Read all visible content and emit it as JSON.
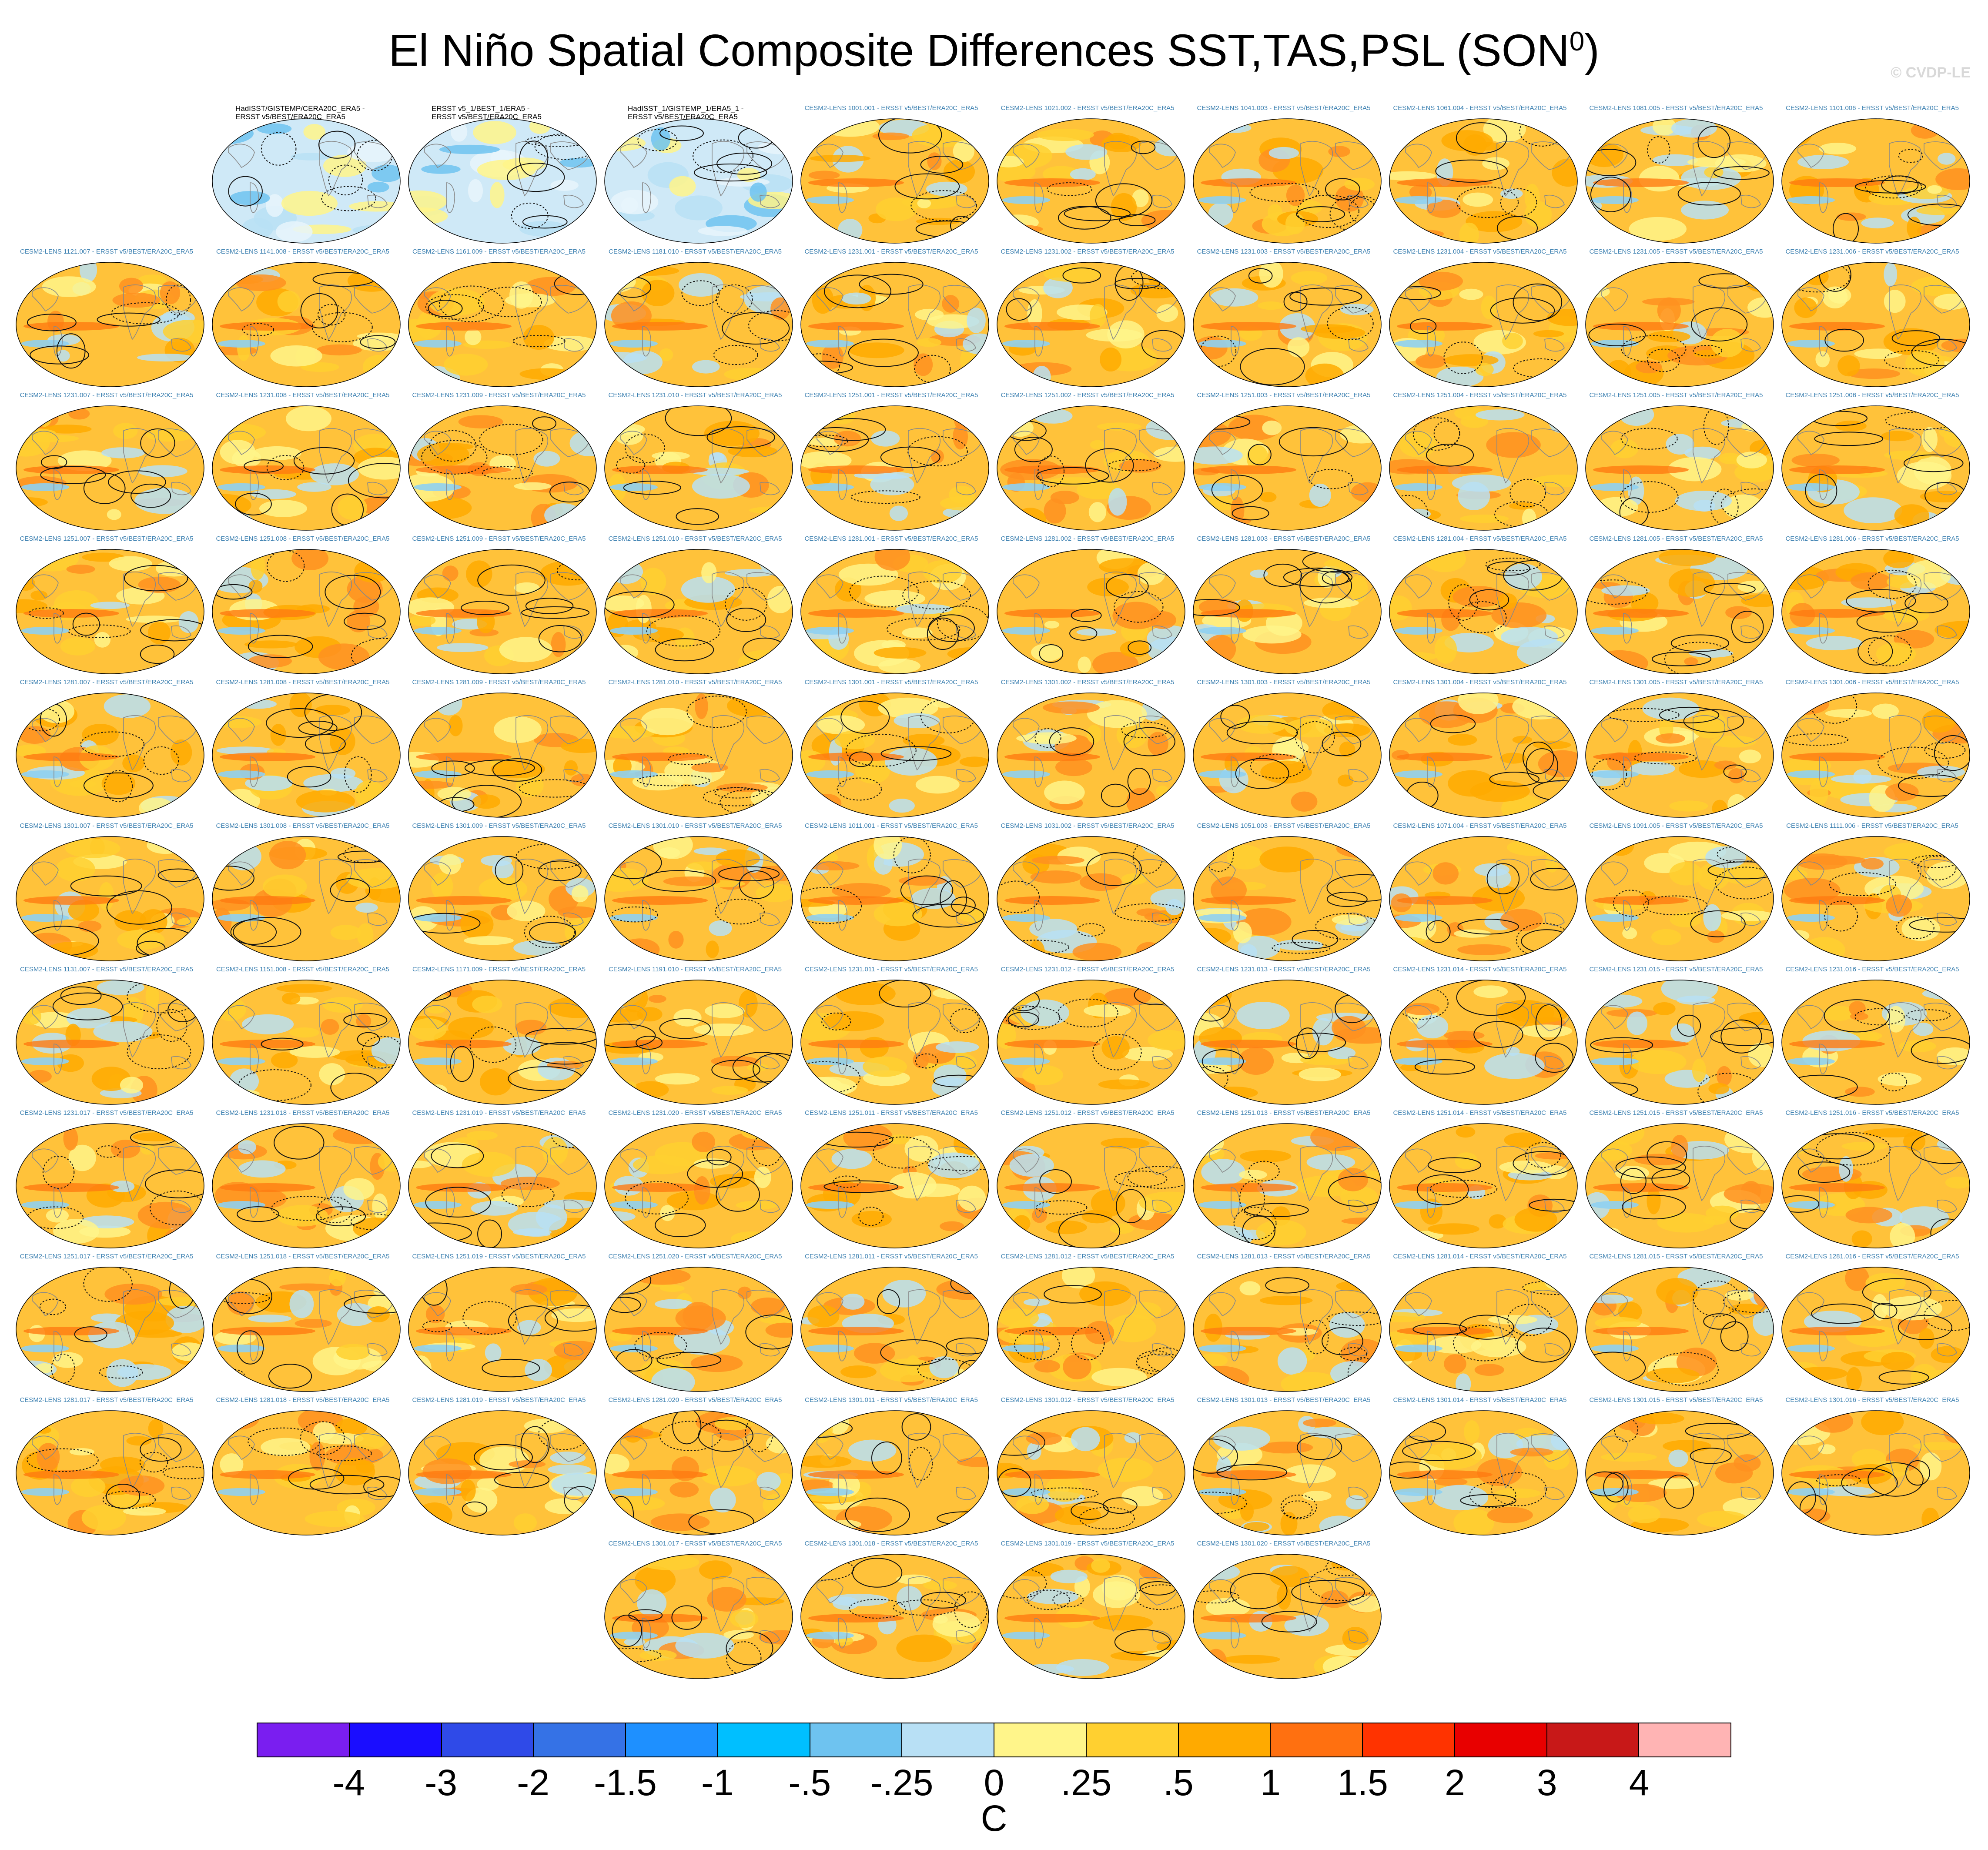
{
  "title": {
    "main": "El Niño Spatial Composite Differences SST,TAS,PSL (SON",
    "superscript": "0",
    "close": ")"
  },
  "watermark": "© CVDP-LE",
  "panels": [
    {
      "label": "HadISST/GISTEMP/CERA20C_ERA5 -\nERSST v5/BEST/ERA20C_ERA5",
      "type": "obs"
    },
    {
      "label": "ERSST v5_1/BEST_1/ERA5 -\nERSST v5/BEST/ERA20C_ERA5",
      "type": "obs"
    },
    {
      "label": "HadISST_1/GISTEMP_1/ERA5_1 -\nERSST v5/BEST/ERA20C_ERA5",
      "type": "obs"
    },
    {
      "label": "CESM2-LENS 1001.001 - ERSST v5/BEST/ERA20C_ERA5",
      "type": "model"
    },
    {
      "label": "CESM2-LENS 1021.002 - ERSST v5/BEST/ERA20C_ERA5",
      "type": "model"
    },
    {
      "label": "CESM2-LENS 1041.003 - ERSST v5/BEST/ERA20C_ERA5",
      "type": "model"
    },
    {
      "label": "CESM2-LENS 1061.004 - ERSST v5/BEST/ERA20C_ERA5",
      "type": "model"
    },
    {
      "label": "CESM2-LENS 1081.005 - ERSST v5/BEST/ERA20C_ERA5",
      "type": "model"
    },
    {
      "label": "CESM2-LENS 1101.006 - ERSST v5/BEST/ERA20C_ERA5",
      "type": "model"
    },
    {
      "label": "CESM2-LENS 1121.007 - ERSST v5/BEST/ERA20C_ERA5",
      "type": "model"
    },
    {
      "label": "CESM2-LENS 1141.008 - ERSST v5/BEST/ERA20C_ERA5",
      "type": "model"
    },
    {
      "label": "CESM2-LENS 1161.009 - ERSST v5/BEST/ERA20C_ERA5",
      "type": "model"
    },
    {
      "label": "CESM2-LENS 1181.010 - ERSST v5/BEST/ERA20C_ERA5",
      "type": "model"
    },
    {
      "label": "CESM2-LENS 1231.001 - ERSST v5/BEST/ERA20C_ERA5",
      "type": "model"
    },
    {
      "label": "CESM2-LENS 1231.002 - ERSST v5/BEST/ERA20C_ERA5",
      "type": "model"
    },
    {
      "label": "CESM2-LENS 1231.003 - ERSST v5/BEST/ERA20C_ERA5",
      "type": "model"
    },
    {
      "label": "CESM2-LENS 1231.004 - ERSST v5/BEST/ERA20C_ERA5",
      "type": "model"
    },
    {
      "label": "CESM2-LENS 1231.005 - ERSST v5/BEST/ERA20C_ERA5",
      "type": "model"
    },
    {
      "label": "CESM2-LENS 1231.006 - ERSST v5/BEST/ERA20C_ERA5",
      "type": "model"
    },
    {
      "label": "CESM2-LENS 1231.007 - ERSST v5/BEST/ERA20C_ERA5",
      "type": "model"
    },
    {
      "label": "CESM2-LENS 1231.008 - ERSST v5/BEST/ERA20C_ERA5",
      "type": "model"
    },
    {
      "label": "CESM2-LENS 1231.009 - ERSST v5/BEST/ERA20C_ERA5",
      "type": "model"
    },
    {
      "label": "CESM2-LENS 1231.010 - ERSST v5/BEST/ERA20C_ERA5",
      "type": "model"
    },
    {
      "label": "CESM2-LENS 1251.001 - ERSST v5/BEST/ERA20C_ERA5",
      "type": "model"
    },
    {
      "label": "CESM2-LENS 1251.002 - ERSST v5/BEST/ERA20C_ERA5",
      "type": "model"
    },
    {
      "label": "CESM2-LENS 1251.003 - ERSST v5/BEST/ERA20C_ERA5",
      "type": "model"
    },
    {
      "label": "CESM2-LENS 1251.004 - ERSST v5/BEST/ERA20C_ERA5",
      "type": "model"
    },
    {
      "label": "CESM2-LENS 1251.005 - ERSST v5/BEST/ERA20C_ERA5",
      "type": "model"
    },
    {
      "label": "CESM2-LENS 1251.006 - ERSST v5/BEST/ERA20C_ERA5",
      "type": "model"
    },
    {
      "label": "CESM2-LENS 1251.007 - ERSST v5/BEST/ERA20C_ERA5",
      "type": "model"
    },
    {
      "label": "CESM2-LENS 1251.008 - ERSST v5/BEST/ERA20C_ERA5",
      "type": "model"
    },
    {
      "label": "CESM2-LENS 1251.009 - ERSST v5/BEST/ERA20C_ERA5",
      "type": "model"
    },
    {
      "label": "CESM2-LENS 1251.010 - ERSST v5/BEST/ERA20C_ERA5",
      "type": "model"
    },
    {
      "label": "CESM2-LENS 1281.001 - ERSST v5/BEST/ERA20C_ERA5",
      "type": "model"
    },
    {
      "label": "CESM2-LENS 1281.002 - ERSST v5/BEST/ERA20C_ERA5",
      "type": "model"
    },
    {
      "label": "CESM2-LENS 1281.003 - ERSST v5/BEST/ERA20C_ERA5",
      "type": "model"
    },
    {
      "label": "CESM2-LENS 1281.004 - ERSST v5/BEST/ERA20C_ERA5",
      "type": "model"
    },
    {
      "label": "CESM2-LENS 1281.005 - ERSST v5/BEST/ERA20C_ERA5",
      "type": "model"
    },
    {
      "label": "CESM2-LENS 1281.006 - ERSST v5/BEST/ERA20C_ERA5",
      "type": "model"
    },
    {
      "label": "CESM2-LENS 1281.007 - ERSST v5/BEST/ERA20C_ERA5",
      "type": "model"
    },
    {
      "label": "CESM2-LENS 1281.008 - ERSST v5/BEST/ERA20C_ERA5",
      "type": "model"
    },
    {
      "label": "CESM2-LENS 1281.009 - ERSST v5/BEST/ERA20C_ERA5",
      "type": "model"
    },
    {
      "label": "CESM2-LENS 1281.010 - ERSST v5/BEST/ERA20C_ERA5",
      "type": "model"
    },
    {
      "label": "CESM2-LENS 1301.001 - ERSST v5/BEST/ERA20C_ERA5",
      "type": "model"
    },
    {
      "label": "CESM2-LENS 1301.002 - ERSST v5/BEST/ERA20C_ERA5",
      "type": "model"
    },
    {
      "label": "CESM2-LENS 1301.003 - ERSST v5/BEST/ERA20C_ERA5",
      "type": "model"
    },
    {
      "label": "CESM2-LENS 1301.004 - ERSST v5/BEST/ERA20C_ERA5",
      "type": "model"
    },
    {
      "label": "CESM2-LENS 1301.005 - ERSST v5/BEST/ERA20C_ERA5",
      "type": "model"
    },
    {
      "label": "CESM2-LENS 1301.006 - ERSST v5/BEST/ERA20C_ERA5",
      "type": "model"
    },
    {
      "label": "CESM2-LENS 1301.007 - ERSST v5/BEST/ERA20C_ERA5",
      "type": "model"
    },
    {
      "label": "CESM2-LENS 1301.008 - ERSST v5/BEST/ERA20C_ERA5",
      "type": "model"
    },
    {
      "label": "CESM2-LENS 1301.009 - ERSST v5/BEST/ERA20C_ERA5",
      "type": "model"
    },
    {
      "label": "CESM2-LENS 1301.010 - ERSST v5/BEST/ERA20C_ERA5",
      "type": "model"
    },
    {
      "label": "CESM2-LENS 1011.001 - ERSST v5/BEST/ERA20C_ERA5",
      "type": "model"
    },
    {
      "label": "CESM2-LENS 1031.002 - ERSST v5/BEST/ERA20C_ERA5",
      "type": "model"
    },
    {
      "label": "CESM2-LENS 1051.003 - ERSST v5/BEST/ERA20C_ERA5",
      "type": "model"
    },
    {
      "label": "CESM2-LENS 1071.004 - ERSST v5/BEST/ERA20C_ERA5",
      "type": "model"
    },
    {
      "label": "CESM2-LENS 1091.005 - ERSST v5/BEST/ERA20C_ERA5",
      "type": "model"
    },
    {
      "label": "CESM2-LENS 1111.006 - ERSST v5/BEST/ERA20C_ERA5",
      "type": "model"
    },
    {
      "label": "CESM2-LENS 1131.007 - ERSST v5/BEST/ERA20C_ERA5",
      "type": "model"
    },
    {
      "label": "CESM2-LENS 1151.008 - ERSST v5/BEST/ERA20C_ERA5",
      "type": "model"
    },
    {
      "label": "CESM2-LENS 1171.009 - ERSST v5/BEST/ERA20C_ERA5",
      "type": "model"
    },
    {
      "label": "CESM2-LENS 1191.010 - ERSST v5/BEST/ERA20C_ERA5",
      "type": "model"
    },
    {
      "label": "CESM2-LENS 1231.011 - ERSST v5/BEST/ERA20C_ERA5",
      "type": "model"
    },
    {
      "label": "CESM2-LENS 1231.012 - ERSST v5/BEST/ERA20C_ERA5",
      "type": "model"
    },
    {
      "label": "CESM2-LENS 1231.013 - ERSST v5/BEST/ERA20C_ERA5",
      "type": "model"
    },
    {
      "label": "CESM2-LENS 1231.014 - ERSST v5/BEST/ERA20C_ERA5",
      "type": "model"
    },
    {
      "label": "CESM2-LENS 1231.015 - ERSST v5/BEST/ERA20C_ERA5",
      "type": "model"
    },
    {
      "label": "CESM2-LENS 1231.016 - ERSST v5/BEST/ERA20C_ERA5",
      "type": "model"
    },
    {
      "label": "CESM2-LENS 1231.017 - ERSST v5/BEST/ERA20C_ERA5",
      "type": "model"
    },
    {
      "label": "CESM2-LENS 1231.018 - ERSST v5/BEST/ERA20C_ERA5",
      "type": "model"
    },
    {
      "label": "CESM2-LENS 1231.019 - ERSST v5/BEST/ERA20C_ERA5",
      "type": "model"
    },
    {
      "label": "CESM2-LENS 1231.020 - ERSST v5/BEST/ERA20C_ERA5",
      "type": "model"
    },
    {
      "label": "CESM2-LENS 1251.011 - ERSST v5/BEST/ERA20C_ERA5",
      "type": "model"
    },
    {
      "label": "CESM2-LENS 1251.012 - ERSST v5/BEST/ERA20C_ERA5",
      "type": "model"
    },
    {
      "label": "CESM2-LENS 1251.013 - ERSST v5/BEST/ERA20C_ERA5",
      "type": "model"
    },
    {
      "label": "CESM2-LENS 1251.014 - ERSST v5/BEST/ERA20C_ERA5",
      "type": "model"
    },
    {
      "label": "CESM2-LENS 1251.015 - ERSST v5/BEST/ERA20C_ERA5",
      "type": "model"
    },
    {
      "label": "CESM2-LENS 1251.016 - ERSST v5/BEST/ERA20C_ERA5",
      "type": "model"
    },
    {
      "label": "CESM2-LENS 1251.017 - ERSST v5/BEST/ERA20C_ERA5",
      "type": "model"
    },
    {
      "label": "CESM2-LENS 1251.018 - ERSST v5/BEST/ERA20C_ERA5",
      "type": "model"
    },
    {
      "label": "CESM2-LENS 1251.019 - ERSST v5/BEST/ERA20C_ERA5",
      "type": "model"
    },
    {
      "label": "CESM2-LENS 1251.020 - ERSST v5/BEST/ERA20C_ERA5",
      "type": "model"
    },
    {
      "label": "CESM2-LENS 1281.011 - ERSST v5/BEST/ERA20C_ERA5",
      "type": "model"
    },
    {
      "label": "CESM2-LENS 1281.012 - ERSST v5/BEST/ERA20C_ERA5",
      "type": "model"
    },
    {
      "label": "CESM2-LENS 1281.013 - ERSST v5/BEST/ERA20C_ERA5",
      "type": "model"
    },
    {
      "label": "CESM2-LENS 1281.014 - ERSST v5/BEST/ERA20C_ERA5",
      "type": "model"
    },
    {
      "label": "CESM2-LENS 1281.015 - ERSST v5/BEST/ERA20C_ERA5",
      "type": "model"
    },
    {
      "label": "CESM2-LENS 1281.016 - ERSST v5/BEST/ERA20C_ERA5",
      "type": "model"
    },
    {
      "label": "CESM2-LENS 1281.017 - ERSST v5/BEST/ERA20C_ERA5",
      "type": "model"
    },
    {
      "label": "CESM2-LENS 1281.018 - ERSST v5/BEST/ERA20C_ERA5",
      "type": "model"
    },
    {
      "label": "CESM2-LENS 1281.019 - ERSST v5/BEST/ERA20C_ERA5",
      "type": "model"
    },
    {
      "label": "CESM2-LENS 1281.020 - ERSST v5/BEST/ERA20C_ERA5",
      "type": "model"
    },
    {
      "label": "CESM2-LENS 1301.011 - ERSST v5/BEST/ERA20C_ERA5",
      "type": "model"
    },
    {
      "label": "CESM2-LENS 1301.012 - ERSST v5/BEST/ERA20C_ERA5",
      "type": "model"
    },
    {
      "label": "CESM2-LENS 1301.013 - ERSST v5/BEST/ERA20C_ERA5",
      "type": "model"
    },
    {
      "label": "CESM2-LENS 1301.014 - ERSST v5/BEST/ERA20C_ERA5",
      "type": "model"
    },
    {
      "label": "CESM2-LENS 1301.015 - ERSST v5/BEST/ERA20C_ERA5",
      "type": "model"
    },
    {
      "label": "CESM2-LENS 1301.016 - ERSST v5/BEST/ERA20C_ERA5",
      "type": "model"
    },
    {
      "label": "CESM2-LENS 1301.017 - ERSST v5/BEST/ERA20C_ERA5",
      "type": "model"
    },
    {
      "label": "CESM2-LENS 1301.018 - ERSST v5/BEST/ERA20C_ERA5",
      "type": "model"
    },
    {
      "label": "CESM2-LENS 1301.019 - ERSST v5/BEST/ERA20C_ERA5",
      "type": "model"
    },
    {
      "label": "CESM2-LENS 1301.020 - ERSST v5/BEST/ERA20C_ERA5",
      "type": "model"
    }
  ],
  "colorbar": {
    "colors": [
      "#7a1ef0",
      "#1a0dff",
      "#2f4ae8",
      "#3572e6",
      "#1e90ff",
      "#00bfff",
      "#6ec3f0",
      "#b8e0f5",
      "#fff58a",
      "#ffd030",
      "#ffaa00",
      "#ff7010",
      "#ff3300",
      "#e80000",
      "#c81818",
      "#ffb4b4"
    ],
    "tick_labels": [
      "-4",
      "-3",
      "-2",
      "-1.5",
      "-1",
      "-.5",
      "-.25",
      "0",
      ".25",
      ".5",
      "1",
      "1.5",
      "2",
      "3",
      "4"
    ],
    "units": "C"
  }
}
